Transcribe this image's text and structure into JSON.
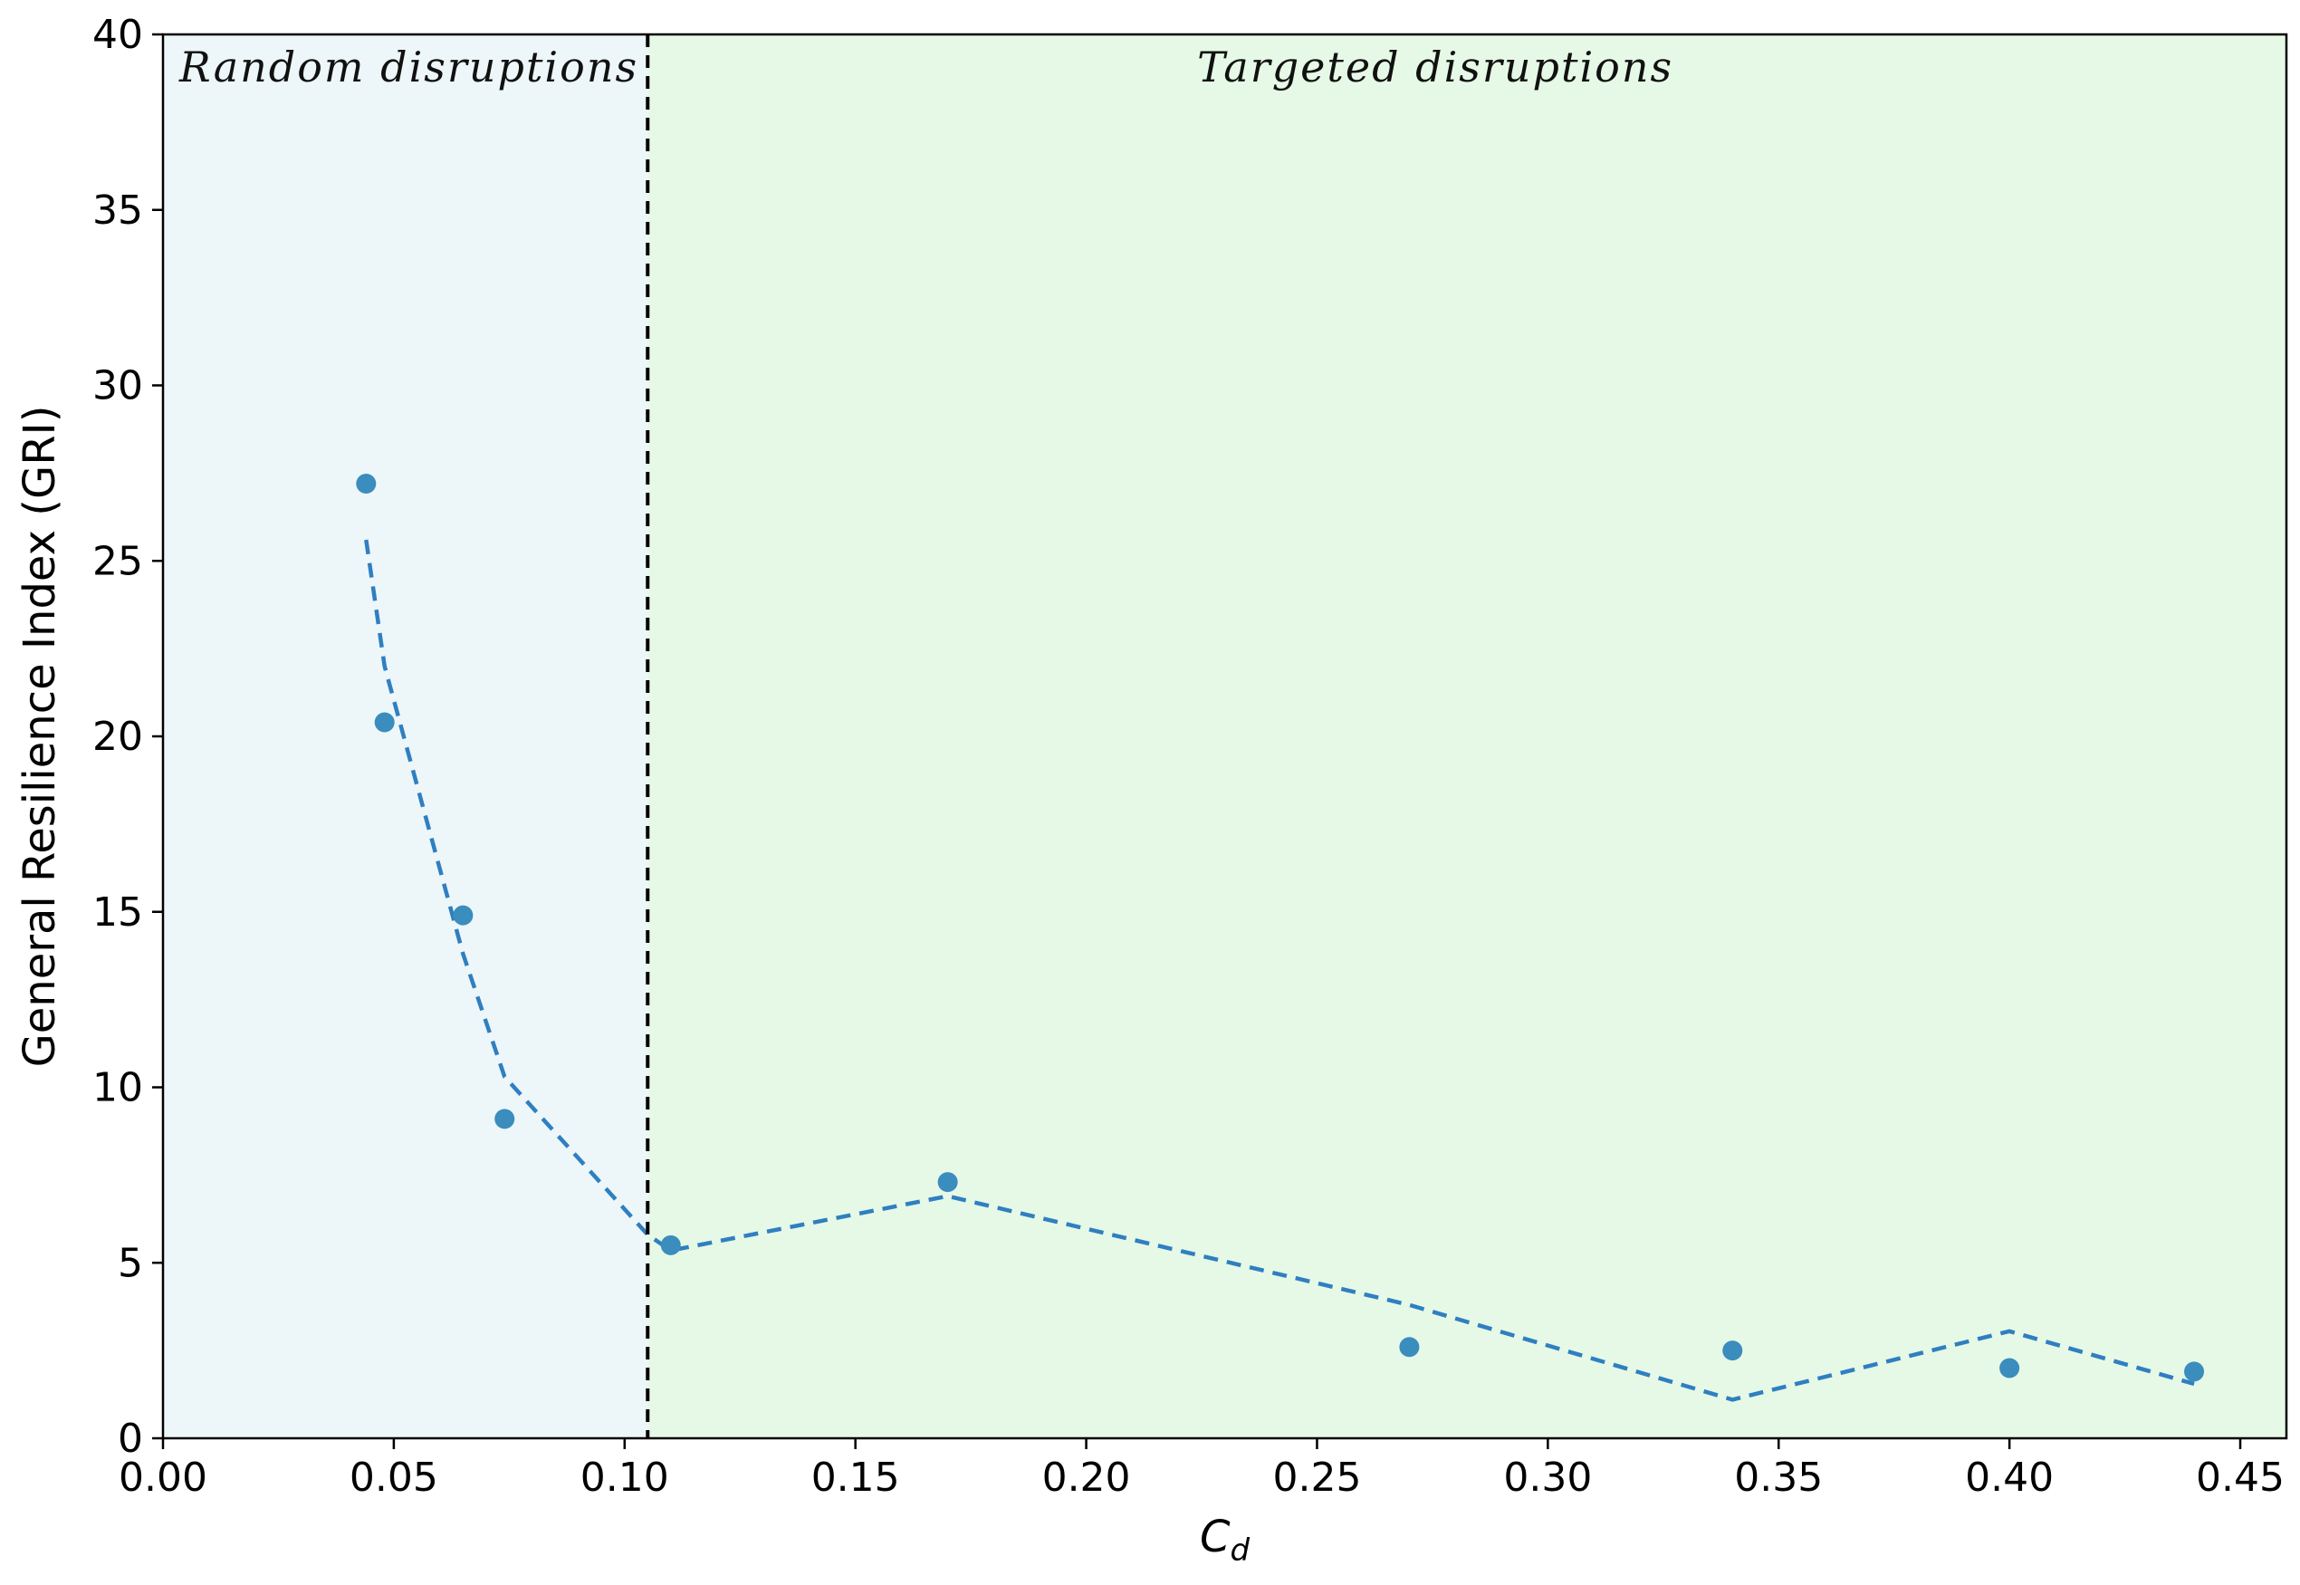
{
  "chart_data": {
    "type": "scatter",
    "xlabel": "C",
    "xlabel_subscript": "d",
    "ylabel": "General Resilience Index (GRI)",
    "xlim": [
      0.0,
      0.46
    ],
    "ylim": [
      0,
      40
    ],
    "x_ticks": [
      "0.00",
      "0.05",
      "0.10",
      "0.15",
      "0.20",
      "0.25",
      "0.30",
      "0.35",
      "0.40",
      "0.45"
    ],
    "y_ticks": [
      "0",
      "5",
      "10",
      "15",
      "20",
      "25",
      "30",
      "35",
      "40"
    ],
    "grid": false,
    "regions": [
      {
        "label": "Random disruptions",
        "x_start": 0.0,
        "x_end": 0.105,
        "color": "#edf6f9"
      },
      {
        "label": "Targeted disruptions",
        "x_start": 0.105,
        "x_end": 0.46,
        "color": "#e6f9e6"
      }
    ],
    "divider_x": 0.105,
    "series": [
      {
        "type": "scatter",
        "color": "#3a8dbd",
        "x": [
          0.044,
          0.048,
          0.065,
          0.074,
          0.11,
          0.17,
          0.27,
          0.34,
          0.4,
          0.44
        ],
        "y": [
          27.2,
          20.4,
          14.9,
          9.1,
          5.5,
          7.3,
          2.6,
          2.5,
          2.0,
          1.9
        ]
      },
      {
        "type": "line",
        "style": "dashed",
        "color": "#2f7fc1",
        "x": [
          0.044,
          0.048,
          0.065,
          0.074,
          0.105,
          0.11,
          0.17,
          0.27,
          0.34,
          0.4,
          0.44
        ],
        "y": [
          25.6,
          22.0,
          13.8,
          10.3,
          5.8,
          5.35,
          6.9,
          3.8,
          1.1,
          3.05,
          1.55
        ]
      }
    ]
  }
}
